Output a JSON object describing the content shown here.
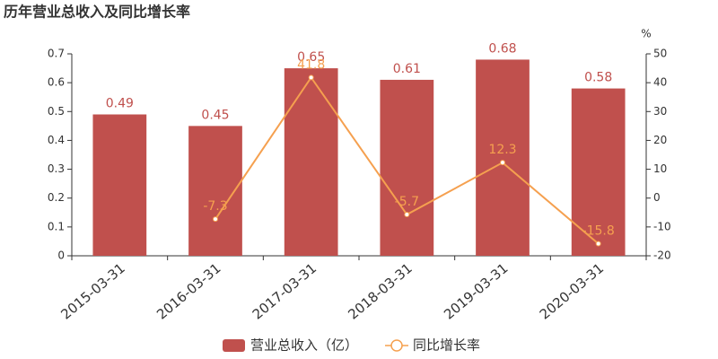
{
  "chart_data": {
    "type": "bar",
    "title": "历年营业总收入及同比增长率",
    "y2label": "%",
    "categories": [
      "2015-03-31",
      "2016-03-31",
      "2017-03-31",
      "2018-03-31",
      "2019-03-31",
      "2020-03-31"
    ],
    "series": [
      {
        "name": "营业总收入（亿）",
        "type": "bar",
        "color": "#c0504d",
        "values": [
          0.49,
          0.45,
          0.65,
          0.61,
          0.68,
          0.58
        ]
      },
      {
        "name": "同比增长率",
        "type": "line",
        "axis": "y2",
        "color": "#f5a04f",
        "values": [
          null,
          -7.3,
          41.8,
          -5.7,
          12.3,
          -15.8
        ]
      }
    ],
    "ylim": [
      0,
      0.7
    ],
    "yticks": [
      0,
      0.1,
      0.2,
      0.3,
      0.4,
      0.5,
      0.6,
      0.7
    ],
    "y2lim": [
      -20,
      50
    ],
    "y2ticks": [
      -20,
      -10,
      0,
      10,
      20,
      30,
      40,
      50
    ],
    "grid": false,
    "legend": "bottom"
  }
}
